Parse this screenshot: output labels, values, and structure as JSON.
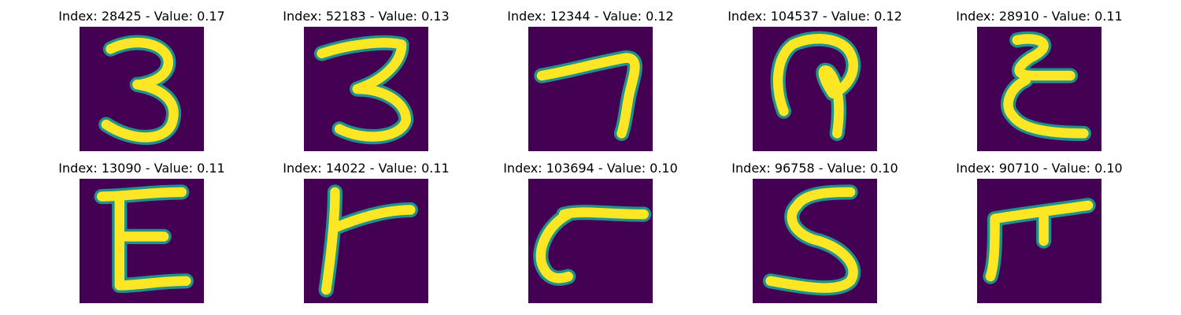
{
  "colors": {
    "background": "#440154",
    "foreground": "#fde725",
    "edge": "#21918c"
  },
  "grid": {
    "items": [
      {
        "title": "Index: 28425 - Value: 0.17",
        "glyph": "digit-3"
      },
      {
        "title": "Index: 52183 - Value: 0.13",
        "glyph": "digit-3"
      },
      {
        "title": "Index: 12344 - Value: 0.12",
        "glyph": "digit-7"
      },
      {
        "title": "Index: 104537 - Value: 0.12",
        "glyph": "hooked-glyph"
      },
      {
        "title": "Index: 28910 - Value: 0.11",
        "glyph": "curly-e"
      },
      {
        "title": "Index: 13090 - Value: 0.11",
        "glyph": "letter-e"
      },
      {
        "title": "Index: 14022 - Value: 0.11",
        "glyph": "letter-r"
      },
      {
        "title": "Index: 103694 - Value: 0.10",
        "glyph": "curved-glyph"
      },
      {
        "title": "Index: 96758 - Value: 0.10",
        "glyph": "digit-5"
      },
      {
        "title": "Index: 90710 - Value: 0.10",
        "glyph": "letter-f"
      }
    ]
  }
}
